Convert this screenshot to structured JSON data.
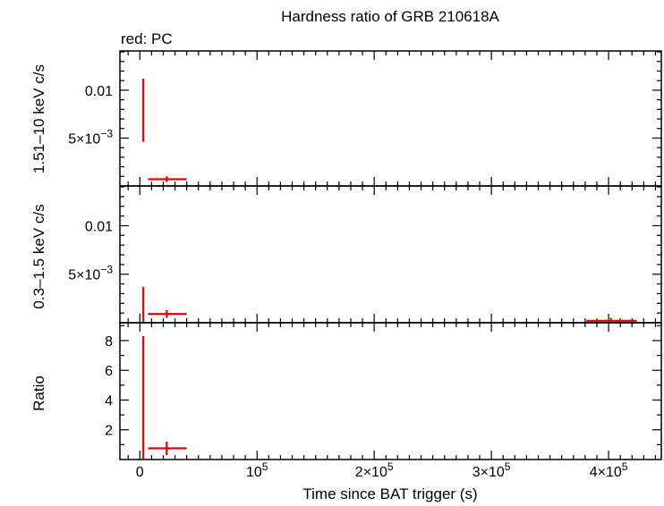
{
  "title": "Hardness ratio of GRB 210618A",
  "legend": "red: PC",
  "xlabel": "Time since BAT trigger (s)",
  "colors": {
    "series": "#e60000",
    "axes": "#000000"
  },
  "chart_data": [
    {
      "type": "scatter",
      "panel": "top",
      "ylabel": "1.51–10 keV c/s",
      "series": [
        {
          "name": "PC",
          "points": [
            {
              "x": 3000,
              "y": 0.0079,
              "xlo": 2500,
              "xhi": 3500,
              "ylo": 0.0046,
              "yhi": 0.0112
            },
            {
              "x": 23000,
              "y": 0.0007,
              "xlo": 7000,
              "xhi": 40000,
              "ylo": 0.0004,
              "yhi": 0.001
            }
          ]
        }
      ],
      "ylim": [
        0,
        0.0141
      ],
      "yticks": [
        {
          "value": 0.005,
          "label": "5×10",
          "exp": "−3"
        },
        {
          "value": 0.01,
          "label": "0.01",
          "exp": ""
        }
      ],
      "yminor": [
        0.001,
        0.002,
        0.003,
        0.004,
        0.006,
        0.007,
        0.008,
        0.009,
        0.011,
        0.012,
        0.013,
        0.014
      ]
    },
    {
      "type": "scatter",
      "panel": "middle",
      "ylabel": "0.3–1.5 keV c/s",
      "series": [
        {
          "name": "PC",
          "points": [
            {
              "x": 3000,
              "y": 0.0019,
              "xlo": 2500,
              "xhi": 3500,
              "ylo": 0.0001,
              "yhi": 0.0037
            },
            {
              "x": 23000,
              "y": 0.0009,
              "xlo": 7000,
              "xhi": 40000,
              "ylo": 0.0005,
              "yhi": 0.0013
            },
            {
              "x": 402000,
              "y": 0.0002,
              "xlo": 381000,
              "xhi": 424000,
              "ylo": 0.0,
              "yhi": 0.0005
            }
          ]
        }
      ],
      "ylim": [
        0,
        0.0141
      ],
      "yticks": [
        {
          "value": 0.005,
          "label": "5×10",
          "exp": "−3"
        },
        {
          "value": 0.01,
          "label": "0.01",
          "exp": ""
        }
      ],
      "yminor": [
        0.001,
        0.002,
        0.003,
        0.004,
        0.006,
        0.007,
        0.008,
        0.009,
        0.011,
        0.012,
        0.013,
        0.014
      ]
    },
    {
      "type": "scatter",
      "panel": "bottom",
      "ylabel": "Ratio",
      "series": [
        {
          "name": "PC",
          "points": [
            {
              "x": 3000,
              "y": 4.2,
              "xlo": 2500,
              "xhi": 3500,
              "ylo": 0.0,
              "yhi": 8.3
            },
            {
              "x": 23000,
              "y": 0.75,
              "xlo": 7000,
              "xhi": 40000,
              "ylo": 0.3,
              "yhi": 1.2
            }
          ]
        }
      ],
      "ylim": [
        0,
        9.2
      ],
      "yticks": [
        {
          "value": 2,
          "label": "2",
          "exp": ""
        },
        {
          "value": 4,
          "label": "4",
          "exp": ""
        },
        {
          "value": 6,
          "label": "6",
          "exp": ""
        },
        {
          "value": 8,
          "label": "8",
          "exp": ""
        }
      ],
      "yminor": [
        1,
        3,
        5,
        7,
        9
      ]
    }
  ],
  "xaxis": {
    "xlim": [
      -17000,
      445000
    ],
    "ticks": [
      {
        "value": 0,
        "label": "0",
        "exp": ""
      },
      {
        "value": 100000,
        "label": "10",
        "exp": "5"
      },
      {
        "value": 200000,
        "label": "2×10",
        "exp": "5"
      },
      {
        "value": 300000,
        "label": "3×10",
        "exp": "5"
      },
      {
        "value": 400000,
        "label": "4×10",
        "exp": "5"
      }
    ],
    "minor": [
      -10000,
      10000,
      20000,
      30000,
      40000,
      50000,
      60000,
      70000,
      80000,
      90000,
      110000,
      120000,
      130000,
      140000,
      150000,
      160000,
      170000,
      180000,
      190000,
      210000,
      220000,
      230000,
      240000,
      250000,
      260000,
      270000,
      280000,
      290000,
      310000,
      320000,
      330000,
      340000,
      350000,
      360000,
      370000,
      380000,
      390000,
      410000,
      420000,
      430000,
      440000
    ]
  }
}
